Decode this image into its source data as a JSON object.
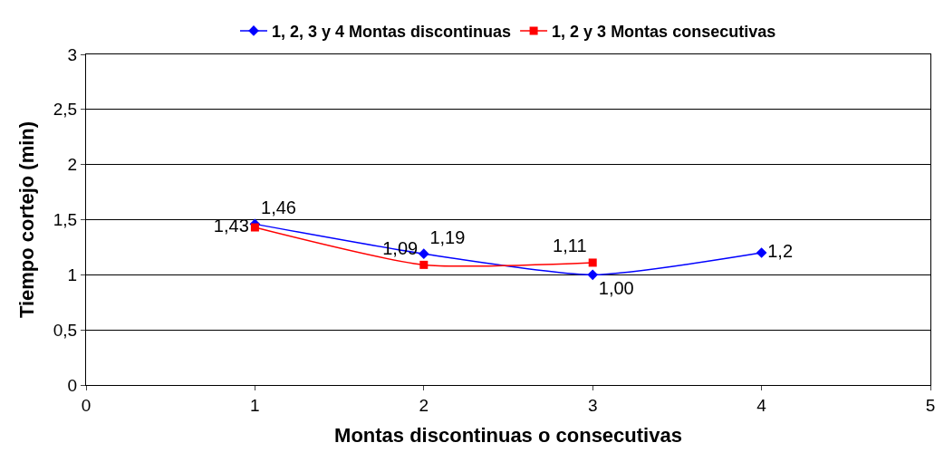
{
  "chart_data": {
    "type": "line",
    "xlabel": "Montas discontinuas o consecutivas",
    "ylabel": "Tiempo cortejo (min)",
    "series": [
      {
        "name": "1, 2, 3 y 4 Montas discontinuas",
        "color": "#0000ff",
        "marker": "diamond",
        "x": [
          1,
          2,
          3,
          4
        ],
        "values": [
          1.46,
          1.19,
          1.0,
          1.2
        ],
        "value_labels": [
          "1,46",
          "1,19",
          "1,00",
          "1,2"
        ]
      },
      {
        "name": "1, 2 y 3 Montas consecutivas",
        "color": "#ff0000",
        "marker": "square",
        "x": [
          1,
          2,
          3
        ],
        "values": [
          1.43,
          1.09,
          1.11
        ],
        "value_labels": [
          "1,43",
          "1,09",
          "1,11"
        ]
      }
    ],
    "xlim": [
      0,
      5
    ],
    "xticks": [
      0,
      1,
      2,
      3,
      4,
      5
    ],
    "ylim": [
      0,
      3
    ],
    "yticks": [
      0,
      {
        "value": 0.5,
        "label": "0,5"
      },
      1,
      {
        "value": 1.5,
        "label": "1,5"
      },
      2,
      {
        "value": 2.5,
        "label": "2,5"
      },
      3
    ],
    "grid": "y",
    "legend": "top",
    "line_style": "solid"
  }
}
